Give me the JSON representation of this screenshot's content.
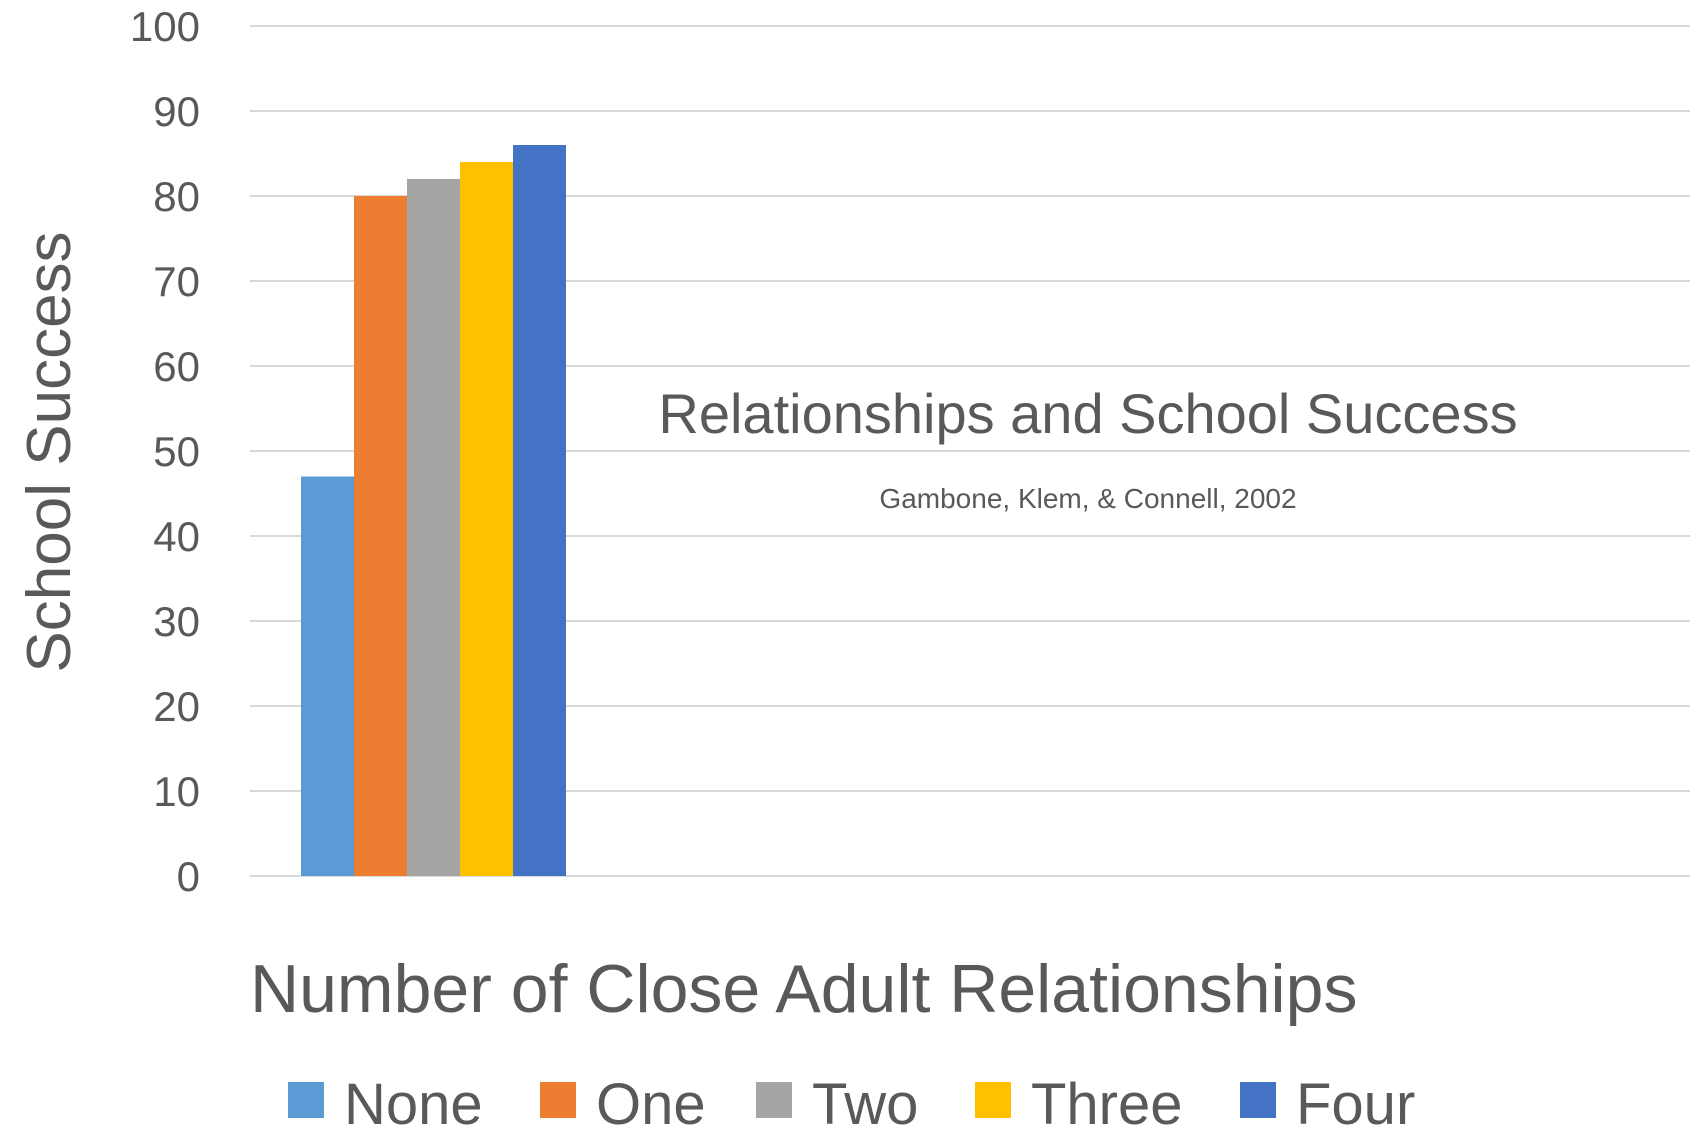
{
  "chart_data": {
    "type": "bar",
    "title": "Relationships and School Success",
    "subtitle": "Gambone, Klem, & Connell, 2002",
    "xlabel": "Number of Close Adult Relationships",
    "ylabel": "School Success",
    "ylim": [
      0,
      100
    ],
    "yticks": [
      0,
      10,
      20,
      30,
      40,
      50,
      60,
      70,
      80,
      90,
      100
    ],
    "grid": true,
    "legend_position": "bottom",
    "categories": [
      ""
    ],
    "series": [
      {
        "name": "None",
        "color": "#5B9BD5",
        "values": [
          47
        ]
      },
      {
        "name": "One",
        "color": "#ED7D31",
        "values": [
          80
        ]
      },
      {
        "name": "Two",
        "color": "#A5A5A5",
        "values": [
          82
        ]
      },
      {
        "name": "Three",
        "color": "#FFC000",
        "values": [
          84
        ]
      },
      {
        "name": "Four",
        "color": "#4472C4",
        "values": [
          86
        ]
      }
    ]
  }
}
